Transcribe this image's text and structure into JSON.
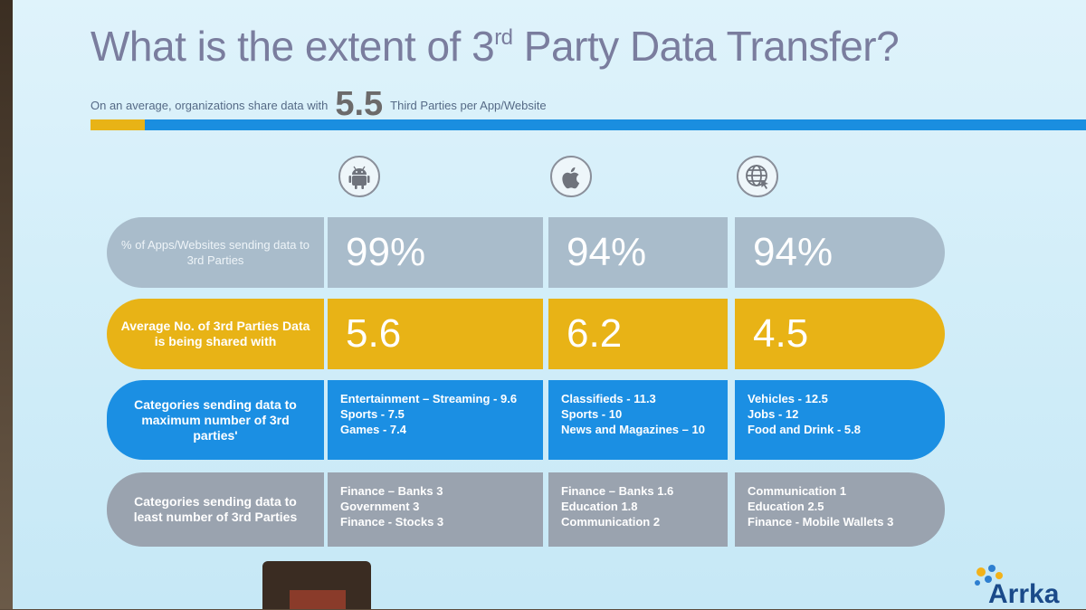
{
  "slide": {
    "title_main": "What is the extent of 3",
    "title_sup": "rd",
    "title_rest": " Party Data Transfer?",
    "subtitle_pre": "On an average, organizations share data with",
    "subtitle_value": "5.5",
    "subtitle_post": "Third Parties per App/Website"
  },
  "platform_icons": [
    "android-icon",
    "apple-icon",
    "web-globe-icon"
  ],
  "rows": {
    "percent": {
      "label": "% of Apps/Websites sending data to 3rd Parties",
      "android": "99%",
      "ios": "94%",
      "web": "94%"
    },
    "average": {
      "label": "Average No. of 3rd Parties Data is being shared with",
      "android": "5.6",
      "ios": "6.2",
      "web": "4.5"
    },
    "max_categories": {
      "label": "Categories sending data to maximum number of 3rd parties'",
      "android": [
        "Entertainment – Streaming - 9.6",
        "Sports - 7.5",
        "Games - 7.4"
      ],
      "ios": [
        "Classifieds - 11.3",
        "Sports - 10",
        "News and Magazines – 10"
      ],
      "web": [
        "Vehicles - 12.5",
        "Jobs - 12",
        "Food and Drink - 5.8"
      ]
    },
    "least_categories": {
      "label": "Categories sending data to least number of 3rd Parties",
      "android": [
        "Finance – Banks 3",
        "Government 3",
        "Finance - Stocks 3"
      ],
      "ios": [
        "Finance – Banks 1.6",
        "Education 1.8",
        "Communication 2"
      ],
      "web": [
        "Communication 1",
        "Education 2.5",
        "Finance - Mobile Wallets 3"
      ]
    }
  },
  "logo": {
    "text": "Arrka"
  },
  "colors": {
    "gold": "#e8b316",
    "blue": "#1b8fe3",
    "grey_blue": "#a9bccb",
    "grey": "#9aa3af",
    "title": "#7a7d9e"
  }
}
